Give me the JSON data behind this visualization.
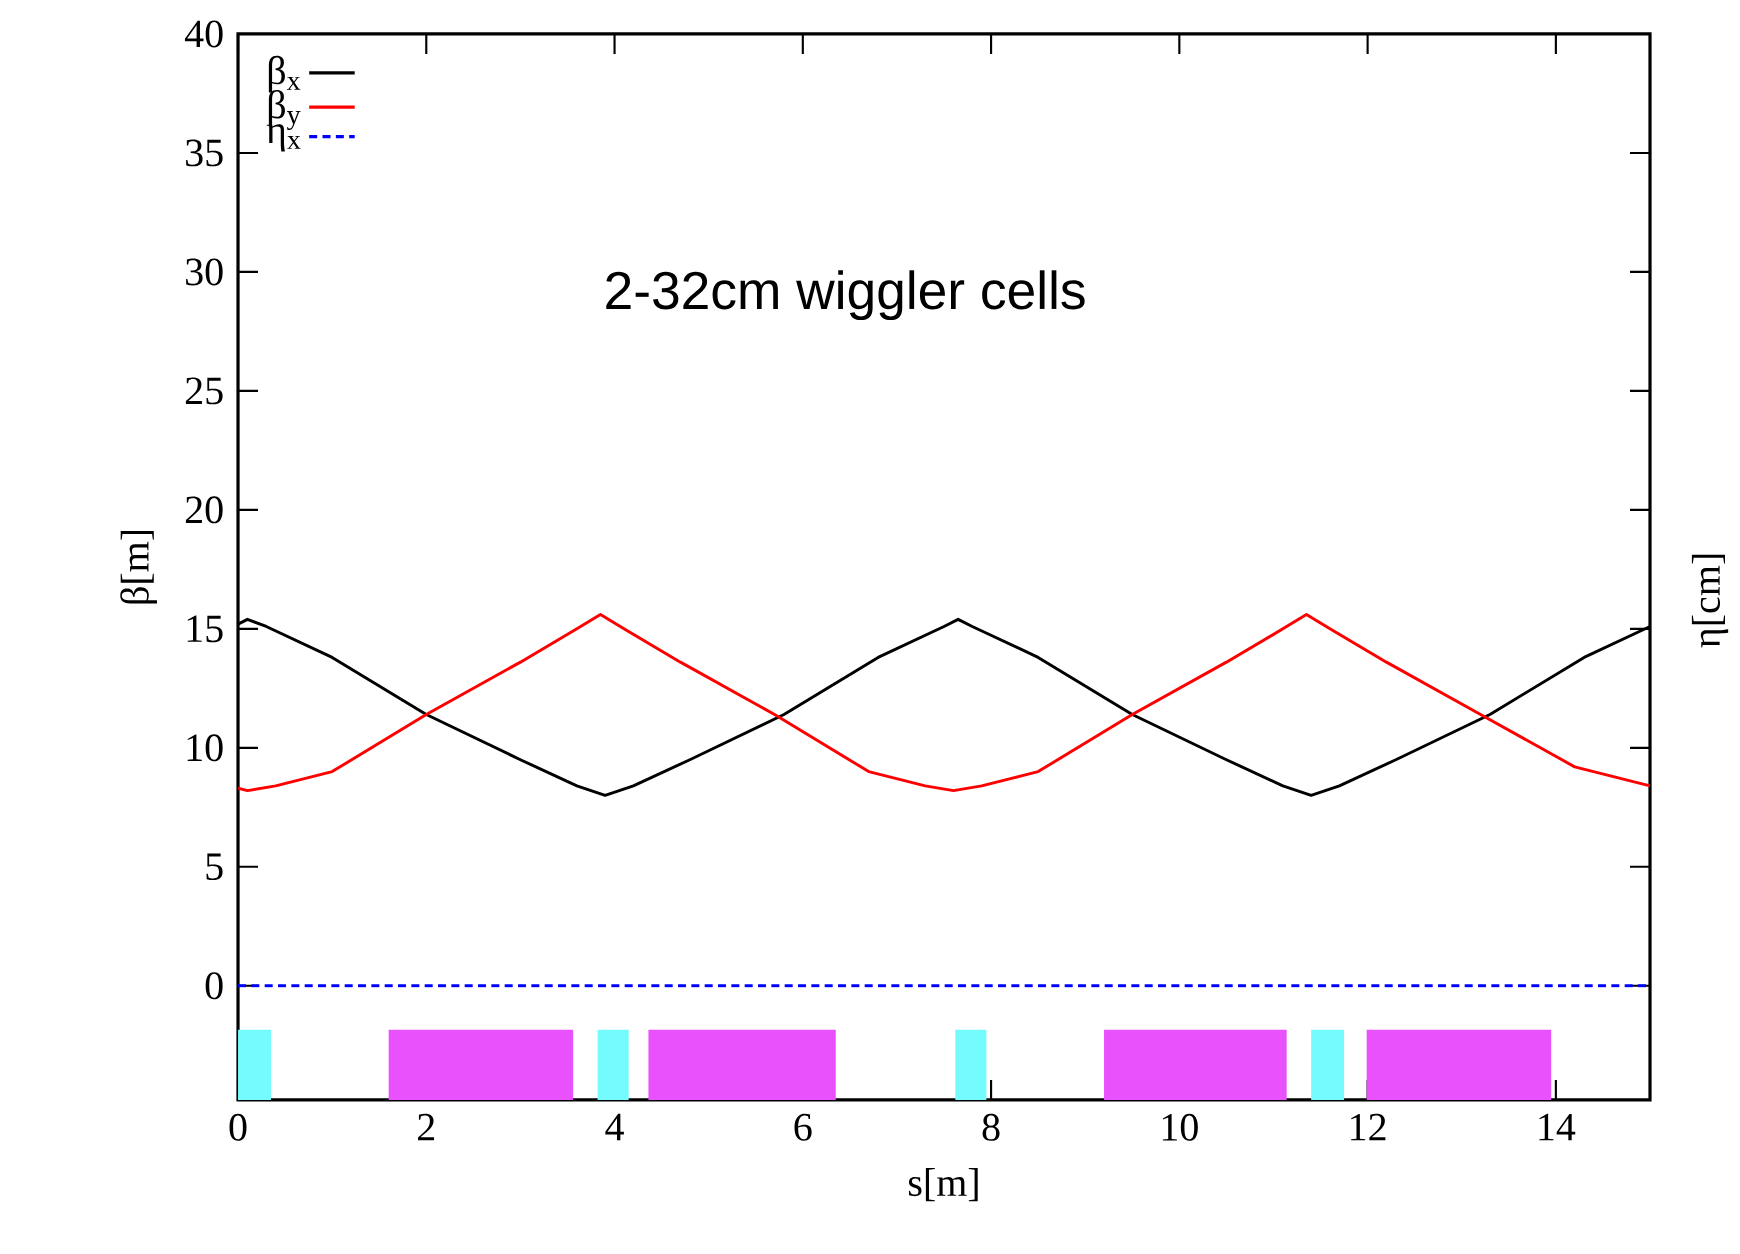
{
  "chart_data": {
    "type": "line",
    "xlabel": "s[m]",
    "ylabel": "β[m]",
    "y2label": "η[cm]",
    "annotations": [
      "2-32cm wiggler cells"
    ],
    "xlim": [
      0,
      15
    ],
    "xticks": [
      0,
      2,
      4,
      6,
      8,
      10,
      12,
      14
    ],
    "ylim": [
      -4.8,
      40
    ],
    "yticks": [
      0,
      5,
      10,
      15,
      20,
      25,
      30,
      35,
      40
    ],
    "grid": false,
    "legend": "top left",
    "series": [
      {
        "name": "β$_{x}$",
        "color": "#000000",
        "line_style": "solid",
        "x": [
          0,
          0.1,
          0.3,
          1,
          2,
          3,
          3.6,
          3.9,
          4.2,
          4.8,
          5.8,
          6.8,
          7.5,
          7.65,
          7.8,
          8.5,
          9.5,
          10.5,
          11.1,
          11.4,
          11.7,
          12.3,
          13.3,
          14.3,
          15
        ],
        "values": [
          15.2,
          15.4,
          15.1,
          13.8,
          11.4,
          9.5,
          8.4,
          8.0,
          8.4,
          9.5,
          11.4,
          13.8,
          15.1,
          15.4,
          15.1,
          13.8,
          11.4,
          9.5,
          8.4,
          8.0,
          8.4,
          9.5,
          11.4,
          13.8,
          15.1
        ]
      },
      {
        "name": "β$_{y}$",
        "color": "#ff0000",
        "line_style": "solid",
        "x": [
          0,
          0.1,
          0.4,
          1,
          2,
          3,
          3.6,
          3.85,
          4.1,
          4.7,
          5.7,
          6.7,
          7.3,
          7.6,
          7.9,
          8.5,
          9.5,
          10.5,
          11.1,
          11.35,
          11.6,
          12.2,
          13.2,
          14.2,
          15
        ],
        "values": [
          8.3,
          8.2,
          8.4,
          9.0,
          11.4,
          13.6,
          15.0,
          15.6,
          15.0,
          13.6,
          11.4,
          9.0,
          8.4,
          8.2,
          8.4,
          9.0,
          11.4,
          13.6,
          15.0,
          15.6,
          15.0,
          13.6,
          11.4,
          9.2,
          8.4
        ]
      },
      {
        "name": "η$_{x}$",
        "color": "#0000ff",
        "line_style": "dashed",
        "x": [
          0,
          15
        ],
        "values": [
          0,
          0
        ]
      }
    ],
    "bands": [
      {
        "axis": "x",
        "from": 0,
        "to": 0.35,
        "color": "#73fbfd"
      },
      {
        "axis": "x",
        "from": 1.6,
        "to": 3.56,
        "color": "#e851fb"
      },
      {
        "axis": "x",
        "from": 3.82,
        "to": 4.15,
        "color": "#73fbfd"
      },
      {
        "axis": "x",
        "from": 4.36,
        "to": 6.35,
        "color": "#e851fb"
      },
      {
        "axis": "x",
        "from": 7.62,
        "to": 7.95,
        "color": "#73fbfd"
      },
      {
        "axis": "x",
        "from": 9.2,
        "to": 11.14,
        "color": "#e851fb"
      },
      {
        "axis": "x",
        "from": 11.4,
        "to": 11.75,
        "color": "#73fbfd"
      },
      {
        "axis": "x",
        "from": 11.99,
        "to": 13.95,
        "color": "#e851fb"
      }
    ]
  }
}
